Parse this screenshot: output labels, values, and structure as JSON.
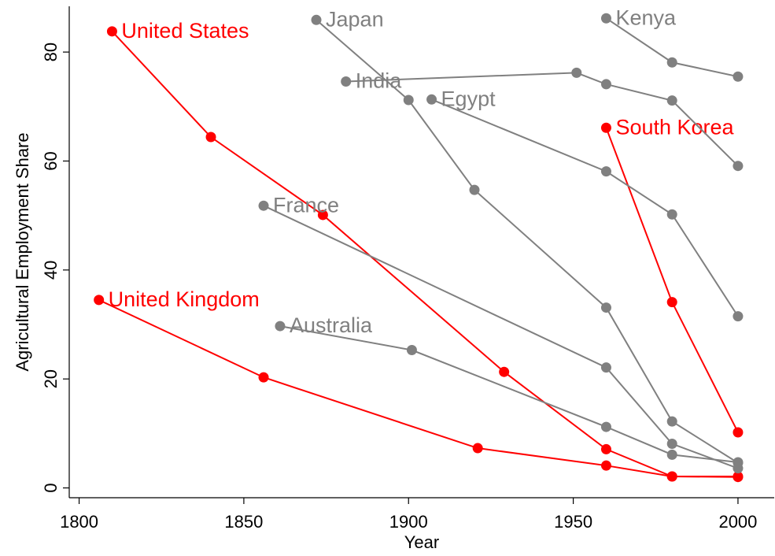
{
  "chart_data": {
    "type": "line",
    "x_label": "Year",
    "y_label": "Agricultural Employment Share",
    "xlim": [
      1797,
      2011
    ],
    "ylim": [
      -1.8,
      88.4
    ],
    "xticks": [
      1800,
      1850,
      1900,
      1950,
      2000
    ],
    "yticks": [
      0,
      20,
      40,
      60,
      80
    ],
    "series": [
      {
        "name": "United States",
        "color": "#ff0000",
        "x": [
          1810,
          1840,
          1874,
          1929,
          1960,
          1980,
          2000
        ],
        "values": [
          83.8,
          64.4,
          50.1,
          21.3,
          7.1,
          2.1,
          2.1
        ]
      },
      {
        "name": "United Kingdom",
        "color": "#ff0000",
        "x": [
          1806,
          1856,
          1921,
          1960,
          1980,
          2000
        ],
        "values": [
          34.5,
          20.3,
          7.3,
          4.1,
          2.1,
          2.0
        ]
      },
      {
        "name": "South Korea",
        "color": "#ff0000",
        "x": [
          1960,
          1980,
          2000
        ],
        "values": [
          66.1,
          34.1,
          10.2
        ]
      },
      {
        "name": "Japan",
        "color": "#808080",
        "x": [
          1872,
          1900,
          1920,
          1960,
          1980,
          2000
        ],
        "values": [
          85.9,
          71.2,
          54.7,
          33.1,
          12.2,
          4.6
        ]
      },
      {
        "name": "Kenya",
        "color": "#808080",
        "x": [
          1960,
          1980,
          2000
        ],
        "values": [
          86.2,
          78.1,
          75.5
        ]
      },
      {
        "name": "India",
        "color": "#808080",
        "x": [
          1881,
          1951,
          1960,
          1980,
          2000
        ],
        "values": [
          74.6,
          76.2,
          74.1,
          71.1,
          59.1
        ]
      },
      {
        "name": "Egypt",
        "color": "#808080",
        "x": [
          1907,
          1960,
          1980,
          2000
        ],
        "values": [
          71.3,
          58.1,
          50.2,
          31.5
        ]
      },
      {
        "name": "France",
        "color": "#808080",
        "x": [
          1856,
          1960,
          1980,
          2000
        ],
        "values": [
          51.8,
          22.1,
          8.1,
          3.6
        ]
      },
      {
        "name": "Australia",
        "color": "#808080",
        "x": [
          1861,
          1901,
          1960,
          1980,
          2000
        ],
        "values": [
          29.7,
          25.3,
          11.2,
          6.1,
          4.7
        ]
      }
    ]
  }
}
